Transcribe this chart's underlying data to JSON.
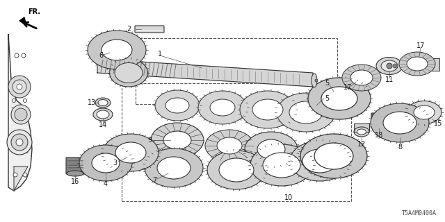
{
  "background_color": "#ffffff",
  "diagram_code": "T5A4M0400A",
  "line_color": "#333333",
  "text_color": "#1a1a1a",
  "figsize": [
    6.4,
    3.2
  ],
  "dpi": 100
}
